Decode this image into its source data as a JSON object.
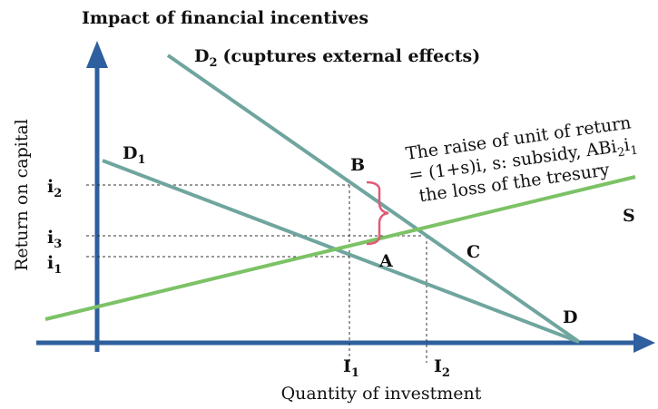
{
  "title": "Impact of financial incentives",
  "y_axis_label": "Return on capital",
  "x_axis_label": "Quantity of investment",
  "d1": {
    "text": "D",
    "sub": "1"
  },
  "d2": {
    "text": "D",
    "sub": "2",
    "description": "(cuptures external effects)"
  },
  "y_ticks": [
    {
      "text": "i",
      "sub": "2"
    },
    {
      "text": "i",
      "sub": "3"
    },
    {
      "text": "i",
      "sub": "1"
    }
  ],
  "x_ticks": [
    {
      "text": "I",
      "sub": "1"
    },
    {
      "text": "I",
      "sub": "2"
    }
  ],
  "points": {
    "A": "A",
    "B": "B",
    "C": "C",
    "D": "D",
    "S": "S"
  },
  "annotation": {
    "line1": "The raise of unit of return",
    "line2": [
      "= (1+s)i, s: subsidy, ABi",
      "2",
      "i",
      "1"
    ],
    "line3": "the loss of the tresury"
  }
}
